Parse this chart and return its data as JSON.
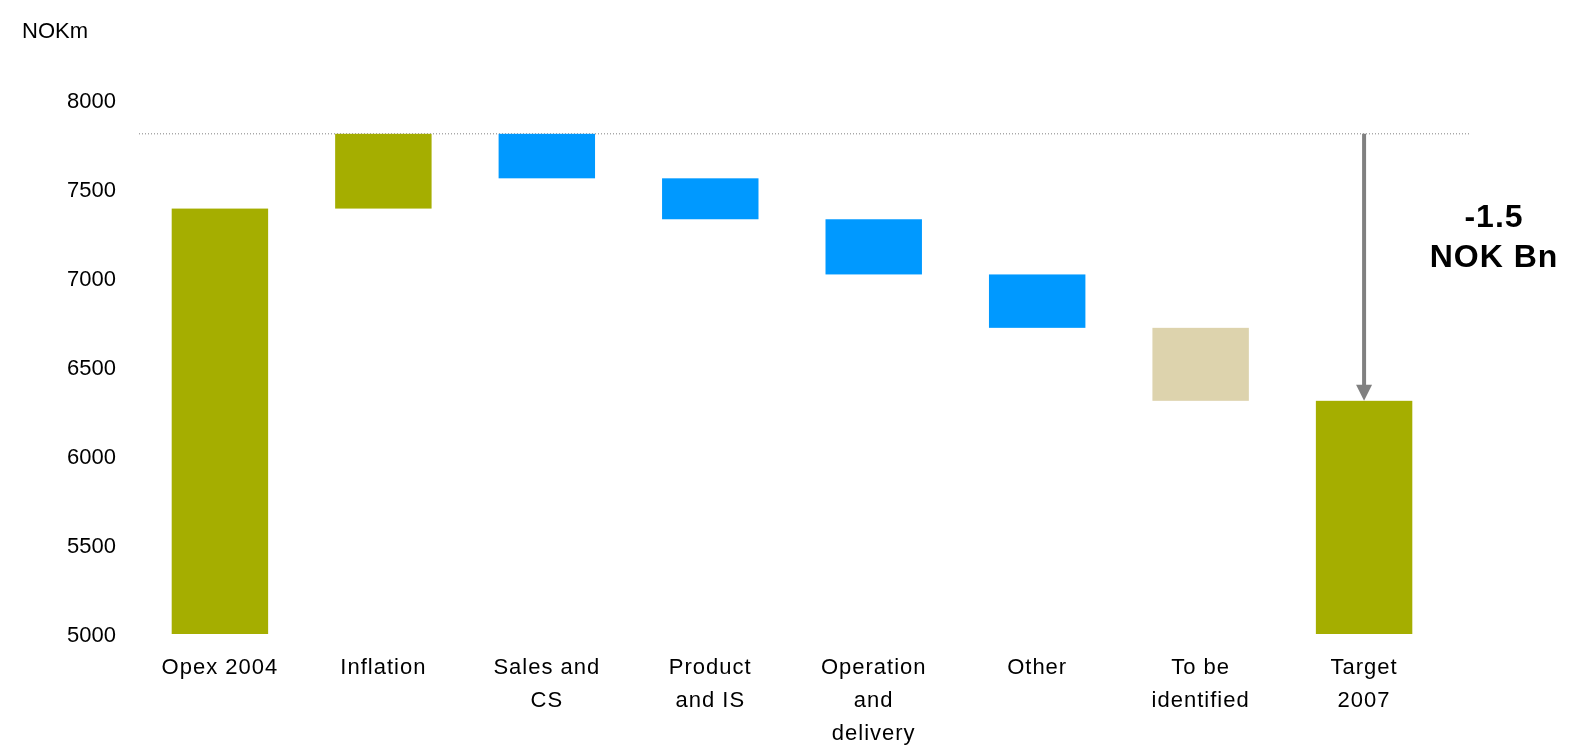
{
  "chart_data": {
    "type": "bar",
    "ylabel": "NOKm",
    "categories": [
      "Opex 2004",
      "Inflation",
      "Sales and CS",
      "Product and IS",
      "Operation and delivery",
      "Other",
      "To be identified",
      "Target 2007"
    ],
    "values": [
      2390,
      420,
      -250,
      -230,
      -310,
      -300,
      -410,
      1310
    ],
    "base": [
      5000,
      7390,
      7810,
      7560,
      7330,
      7020,
      6720,
      5000
    ],
    "colors": [
      "#a5ae00",
      "#a5ae00",
      "#0099ff",
      "#0099ff",
      "#0099ff",
      "#0099ff",
      "#ddd3ad",
      "#a5ae00"
    ],
    "ylim": [
      5000,
      8000
    ],
    "yticks": [
      5000,
      5500,
      6000,
      6500,
      7000,
      7500,
      8000
    ],
    "grid": false,
    "ref_lines": [
      {
        "axis": "y",
        "value": 7810,
        "color": "#808080",
        "line_style": "dotted"
      }
    ],
    "annotations": [
      "-1.5 NOK Bn"
    ]
  }
}
